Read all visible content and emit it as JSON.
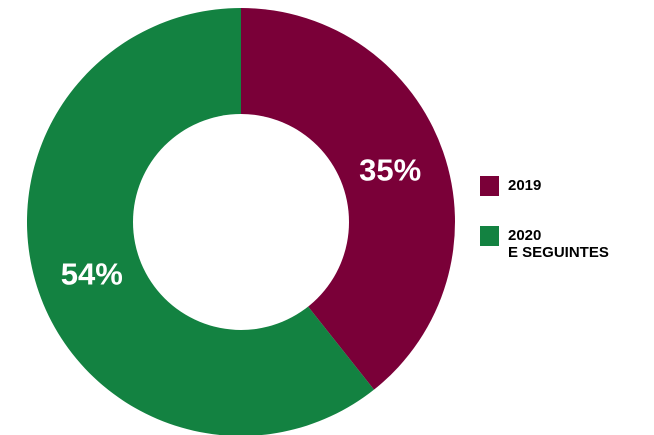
{
  "chart_data": {
    "type": "pie",
    "donut": true,
    "title": "",
    "slices": [
      {
        "label": "2019",
        "value": 35,
        "display": "35%",
        "color": "#7a0038"
      },
      {
        "label": "2020\nE SEGUINTES",
        "value": 54,
        "display": "54%",
        "color": "#138241"
      }
    ],
    "legend_position": "right"
  }
}
